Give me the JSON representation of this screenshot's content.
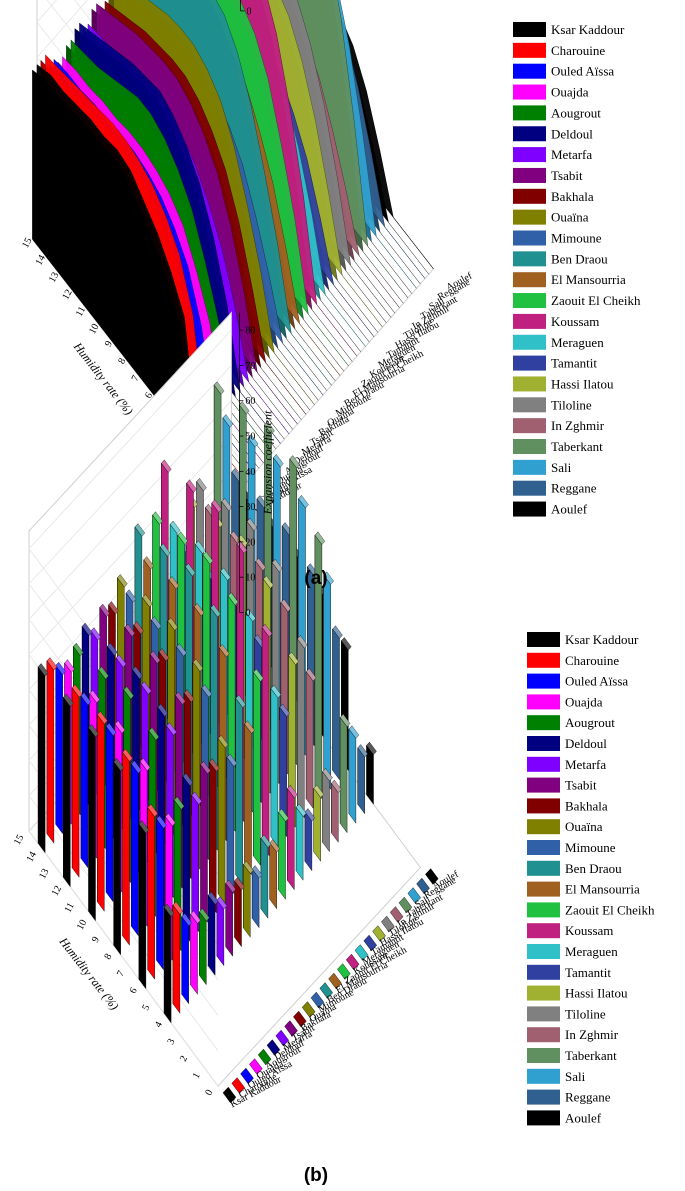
{
  "panels": [
    {
      "label": "(a)"
    },
    {
      "label": "(b)"
    }
  ],
  "chart_data": [
    {
      "type": "area",
      "subtype": "3d-wall",
      "panel": "(a)",
      "xlabel": "Humidity rate (%)",
      "zlabel": "Expansion coefficient",
      "x": [
        0,
        1,
        2,
        3,
        4,
        5,
        6,
        7,
        8,
        9,
        10,
        11,
        12,
        13,
        14,
        15
      ],
      "x_ticks": [
        "0",
        "1",
        "2",
        "3",
        "4",
        "5",
        "6",
        "7",
        "8",
        "9",
        "10",
        "11",
        "12",
        "13",
        "14",
        "15"
      ],
      "z_ticks": [
        "0",
        "10",
        "20",
        "30",
        "40",
        "50",
        "60",
        "70",
        "80"
      ],
      "zlim": [
        0,
        85
      ],
      "grid": true,
      "legend_position": "right",
      "series": [
        {
          "name": "Ksar Kaddour",
          "color": "#000000",
          "values": [
            0,
            0,
            0,
            0,
            30,
            38,
            44,
            48,
            52,
            53,
            52,
            52,
            51,
            50,
            50,
            48
          ]
        },
        {
          "name": "Charouine",
          "color": "#ff0000",
          "values": [
            0,
            0,
            0,
            0,
            28,
            40,
            46,
            50,
            52,
            53,
            53,
            52,
            51,
            50,
            49,
            48
          ]
        },
        {
          "name": "Ouled Aïssa",
          "color": "#0000ff",
          "values": [
            0,
            0,
            0,
            0,
            22,
            34,
            40,
            44,
            46,
            47,
            47,
            46,
            46,
            45,
            45,
            44
          ]
        },
        {
          "name": " Ouajda",
          "color": "#ff00ff",
          "values": [
            0,
            0,
            0,
            0,
            20,
            30,
            38,
            42,
            44,
            45,
            45,
            44,
            44,
            43,
            43,
            42
          ]
        },
        {
          "name": "Aougrout",
          "color": "#008000",
          "values": [
            0,
            0,
            0,
            0,
            18,
            30,
            40,
            46,
            50,
            52,
            52,
            50,
            48,
            46,
            45,
            44
          ]
        },
        {
          "name": "Deldoul",
          "color": "#000080",
          "values": [
            0,
            0,
            0,
            0,
            20,
            34,
            44,
            50,
            54,
            56,
            55,
            54,
            52,
            50,
            48,
            46
          ]
        },
        {
          "name": "Metarfa",
          "color": "#8000ff",
          "values": [
            0,
            0,
            0,
            0,
            16,
            28,
            36,
            42,
            46,
            48,
            48,
            47,
            46,
            45,
            44,
            43
          ]
        },
        {
          "name": "Tsabit",
          "color": "#800080",
          "values": [
            0,
            0,
            0,
            0,
            18,
            32,
            42,
            48,
            52,
            54,
            54,
            53,
            52,
            50,
            48,
            46
          ]
        },
        {
          "name": "Bakhala",
          "color": "#800000",
          "values": [
            0,
            0,
            0,
            0,
            16,
            30,
            40,
            46,
            50,
            52,
            52,
            51,
            50,
            48,
            46,
            44
          ]
        },
        {
          "name": "Ouaïna",
          "color": "#808000",
          "values": [
            0,
            0,
            0,
            0,
            18,
            32,
            44,
            52,
            56,
            58,
            58,
            57,
            55,
            53,
            51,
            49
          ]
        },
        {
          "name": "Mimoune",
          "color": "#3060a8",
          "values": [
            0,
            0,
            0,
            0,
            14,
            26,
            36,
            42,
            46,
            48,
            48,
            47,
            46,
            45,
            44,
            43
          ]
        },
        {
          "name": "Ben Draou",
          "color": "#209090",
          "values": [
            0,
            0,
            0,
            0,
            20,
            36,
            50,
            60,
            66,
            68,
            68,
            66,
            64,
            62,
            60,
            58
          ]
        },
        {
          "name": "El Mansourria",
          "color": "#a06020",
          "values": [
            0,
            0,
            0,
            0,
            16,
            30,
            40,
            48,
            52,
            54,
            54,
            53,
            52,
            50,
            48,
            46
          ]
        },
        {
          "name": "Zaouit El Cheikh",
          "color": "#20c040",
          "values": [
            0,
            0,
            0,
            0,
            22,
            38,
            52,
            60,
            64,
            66,
            66,
            64,
            62,
            60,
            58,
            56
          ]
        },
        {
          "name": "Koussam",
          "color": "#c02080",
          "values": [
            0,
            0,
            0,
            0,
            26,
            46,
            62,
            72,
            76,
            78,
            78,
            76,
            74,
            72,
            70,
            68
          ]
        },
        {
          "name": "Meraguen",
          "color": "#30c0c8",
          "values": [
            0,
            0,
            0,
            0,
            18,
            32,
            42,
            50,
            54,
            56,
            56,
            55,
            54,
            52,
            50,
            48
          ]
        },
        {
          "name": "Tamantit",
          "color": "#3040a0",
          "values": [
            0,
            0,
            0,
            0,
            14,
            26,
            34,
            40,
            44,
            46,
            46,
            45,
            44,
            43,
            42,
            41
          ]
        },
        {
          "name": "Hassi Ilatou",
          "color": "#a0b030",
          "values": [
            0,
            0,
            0,
            0,
            18,
            34,
            46,
            54,
            58,
            60,
            60,
            58,
            56,
            54,
            52,
            50
          ]
        },
        {
          "name": "Tiloline",
          "color": "#808080",
          "values": [
            0,
            0,
            0,
            0,
            20,
            36,
            48,
            56,
            60,
            62,
            62,
            60,
            58,
            56,
            54,
            52
          ]
        },
        {
          "name": "In Zghmir",
          "color": "#a06070",
          "values": [
            0,
            0,
            0,
            0,
            14,
            26,
            36,
            42,
            46,
            48,
            48,
            47,
            46,
            45,
            44,
            43
          ]
        },
        {
          "name": "Taberkant",
          "color": "#609060",
          "values": [
            0,
            0,
            0,
            0,
            30,
            55,
            72,
            80,
            84,
            85,
            84,
            82,
            80,
            78,
            76,
            74
          ]
        },
        {
          "name": "Sali",
          "color": "#30a0d0",
          "values": [
            0,
            0,
            0,
            0,
            24,
            44,
            58,
            66,
            70,
            72,
            72,
            70,
            68,
            66,
            64,
            62
          ]
        },
        {
          "name": "Reggane",
          "color": "#306090",
          "values": [
            0,
            0,
            0,
            0,
            16,
            30,
            40,
            46,
            48,
            50,
            50,
            49,
            48,
            47,
            46,
            45
          ]
        },
        {
          "name": "Aoulef",
          "color": "#000000",
          "values": [
            0,
            0,
            0,
            0,
            14,
            26,
            34,
            38,
            40,
            41,
            41,
            40,
            40,
            39,
            38,
            38
          ]
        }
      ]
    },
    {
      "type": "bar",
      "subtype": "3d-bar",
      "panel": "(b)",
      "xlabel": "Humidity rate (%)",
      "zlabel": "Expansion coefficient",
      "x": [
        0,
        1,
        2,
        3,
        4,
        5,
        6,
        7,
        8,
        9,
        10,
        11,
        12,
        13,
        14,
        15
      ],
      "x_ticks": [
        "0",
        "1",
        "2",
        "3",
        "4",
        "5",
        "6",
        "7",
        "8",
        "9",
        "10",
        "11",
        "12",
        "13",
        "14",
        "15"
      ],
      "z_ticks": [
        "0",
        "10",
        "20",
        "30",
        "40",
        "50",
        "60",
        "70",
        "80"
      ],
      "zlim": [
        0,
        85
      ],
      "grid": true,
      "legend_position": "right",
      "series": [
        {
          "name": "Ksar Kaddour",
          "color": "#000000"
        },
        {
          "name": "Charouine",
          "color": "#ff0000"
        },
        {
          "name": "Ouled Aïssa",
          "color": "#0000ff"
        },
        {
          "name": " Ouajda",
          "color": "#ff00ff"
        },
        {
          "name": "Aougrout",
          "color": "#008000"
        },
        {
          "name": "Deldoul",
          "color": "#000080"
        },
        {
          "name": "Metarfa",
          "color": "#8000ff"
        },
        {
          "name": "Tsabit",
          "color": "#800080"
        },
        {
          "name": "Bakhala",
          "color": "#800000"
        },
        {
          "name": "Ouaïna",
          "color": "#808000"
        },
        {
          "name": "Mimoune",
          "color": "#3060a8"
        },
        {
          "name": "Ben Draou",
          "color": "#209090"
        },
        {
          "name": "El Mansourria",
          "color": "#a06020"
        },
        {
          "name": "Zaouit El Cheikh",
          "color": "#20c040"
        },
        {
          "name": "Koussam",
          "color": "#c02080"
        },
        {
          "name": "Meraguen",
          "color": "#30c0c8"
        },
        {
          "name": "Tamantit",
          "color": "#3040a0"
        },
        {
          "name": "Hassi Ilatou",
          "color": "#a0b030"
        },
        {
          "name": "Tiloline",
          "color": "#808080"
        },
        {
          "name": "In Zghmir",
          "color": "#a06070"
        },
        {
          "name": "Taberkant",
          "color": "#609060"
        },
        {
          "name": "Sali",
          "color": "#30a0d0"
        },
        {
          "name": "Reggane",
          "color": "#306090"
        },
        {
          "name": "Aoulef",
          "color": "#000000"
        }
      ],
      "x_bars": [
        0,
        2,
        4,
        6,
        8,
        10,
        12,
        14
      ],
      "values_note_ref": "same as panel (a)"
    }
  ]
}
